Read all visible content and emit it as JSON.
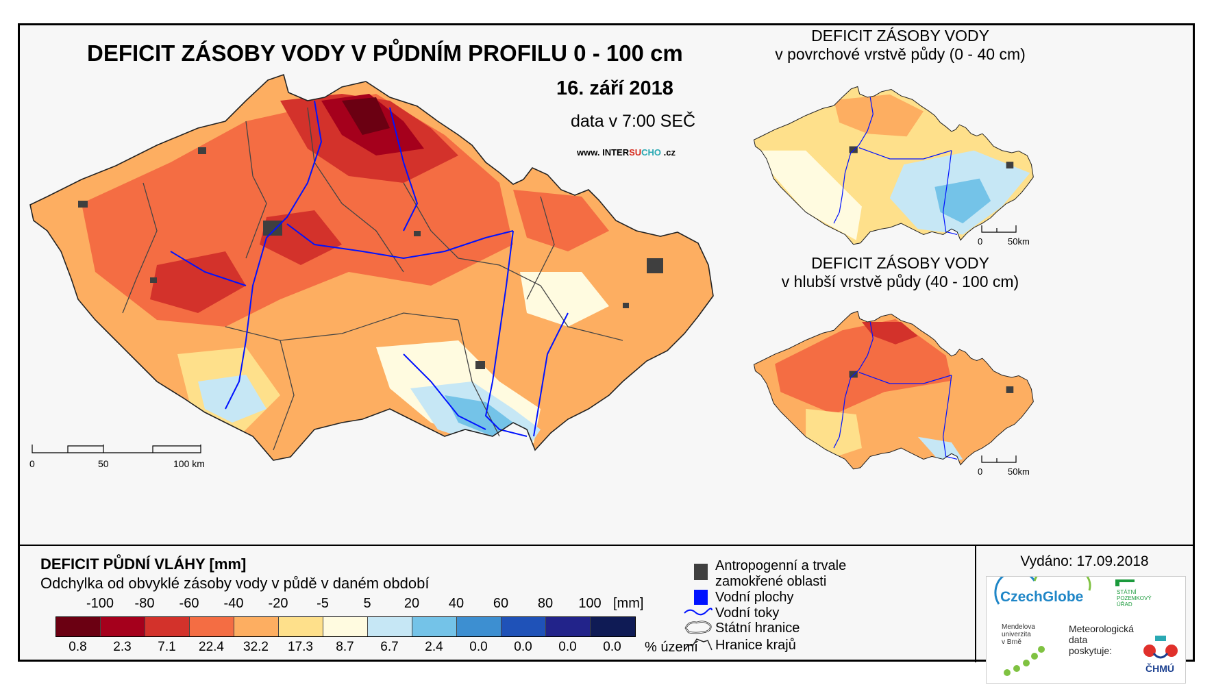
{
  "main": {
    "title": "DEFICIT ZÁSOBY VODY V PŮDNÍM PROFILU 0 - 100 cm",
    "date": "16. září 2018",
    "time": "data v 7:00 SEČ",
    "website": {
      "prefix": "www. INTER",
      "su": "SU",
      "cho": "CHO",
      "suffix": " .cz"
    },
    "scale": {
      "ticks": [
        "0",
        "50",
        "100 km"
      ]
    }
  },
  "insets": [
    {
      "title_line1": "DEFICIT ZÁSOBY VODY",
      "title_line2": "v povrchové vrstvě půdy (0 - 40 cm)",
      "scale": [
        "0",
        "50km"
      ]
    },
    {
      "title_line1": "DEFICIT ZÁSOBY VODY",
      "title_line2": "v hlubší vrstvě půdy (40 - 100 cm)",
      "scale": [
        "0",
        "50km"
      ]
    }
  ],
  "legend": {
    "title": "DEFICIT PŮDNÍ VLÁHY [mm]",
    "subtitle": "Odchylka od obvyklé zásoby vody v půdě v daném období",
    "ticks": [
      "-100",
      "-80",
      "-60",
      "-40",
      "-20",
      "-5",
      "5",
      "20",
      "40",
      "60",
      "80",
      "100"
    ],
    "unit": "[mm]",
    "colors": [
      "#6b0012",
      "#a5001c",
      "#d3322b",
      "#f46d43",
      "#fdae61",
      "#fee08b",
      "#fffbe0",
      "#c6e7f5",
      "#74c3e8",
      "#3d8fd1",
      "#1f52b8",
      "#22238a",
      "#0f1b55"
    ],
    "percentages": [
      "0.8",
      "2.3",
      "7.1",
      "22.4",
      "32.2",
      "17.3",
      "8.7",
      "6.7",
      "2.4",
      "0.0",
      "0.0",
      "0.0",
      "0.0"
    ],
    "percent_unit": "% území"
  },
  "symbols": {
    "anthropogenic_line1": "Antropogenní a trvale",
    "anthropogenic_line2": "zamokřené oblasti",
    "water_bodies": "Vodní plochy",
    "rivers": "Vodní toky",
    "state_border": "Státní hranice",
    "region_border": "Hranice krajů"
  },
  "issued": "Vydáno: 17.09.2018",
  "logos": {
    "czechglobe": "CzechGlobe",
    "spu": [
      "STÁTNÍ",
      "POZEMKOVÝ",
      "ÚŘAD"
    ],
    "mendel": [
      "Mendelova",
      "univerzita",
      "v Brně"
    ],
    "meteo": [
      "Meteorologická",
      "data",
      "poskytuje:"
    ],
    "chmu": "ČHMÚ"
  }
}
